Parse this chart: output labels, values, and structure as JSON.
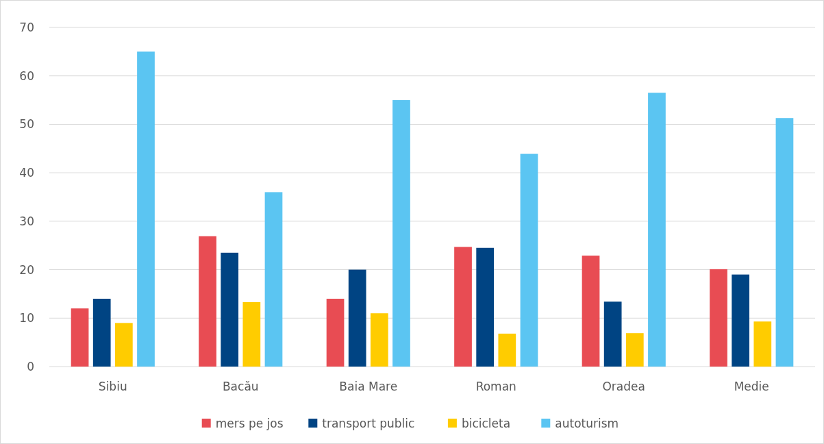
{
  "chart_data": {
    "type": "bar",
    "categories": [
      "Sibiu",
      "Bacău",
      "Baia Mare",
      "Roman",
      "Oradea",
      "Medie"
    ],
    "series": [
      {
        "name": "mers pe jos",
        "color": "#e84c53",
        "values": [
          12,
          26.9,
          14,
          24.7,
          22.9,
          20.1
        ]
      },
      {
        "name": "transport public",
        "color": "#004483",
        "values": [
          14,
          23.5,
          20,
          24.5,
          13.4,
          19
        ]
      },
      {
        "name": "bicicleta",
        "color": "#ffcc00",
        "values": [
          9,
          13.3,
          11,
          6.8,
          6.9,
          9.3
        ]
      },
      {
        "name": "autoturism",
        "color": "#5bc5f2",
        "values": [
          65,
          36,
          55,
          43.9,
          56.5,
          51.3
        ]
      }
    ],
    "ylim": [
      0,
      70
    ],
    "yticks": [
      0,
      10,
      20,
      30,
      40,
      50,
      60,
      70
    ],
    "grid": "y",
    "legend": "bottom"
  }
}
